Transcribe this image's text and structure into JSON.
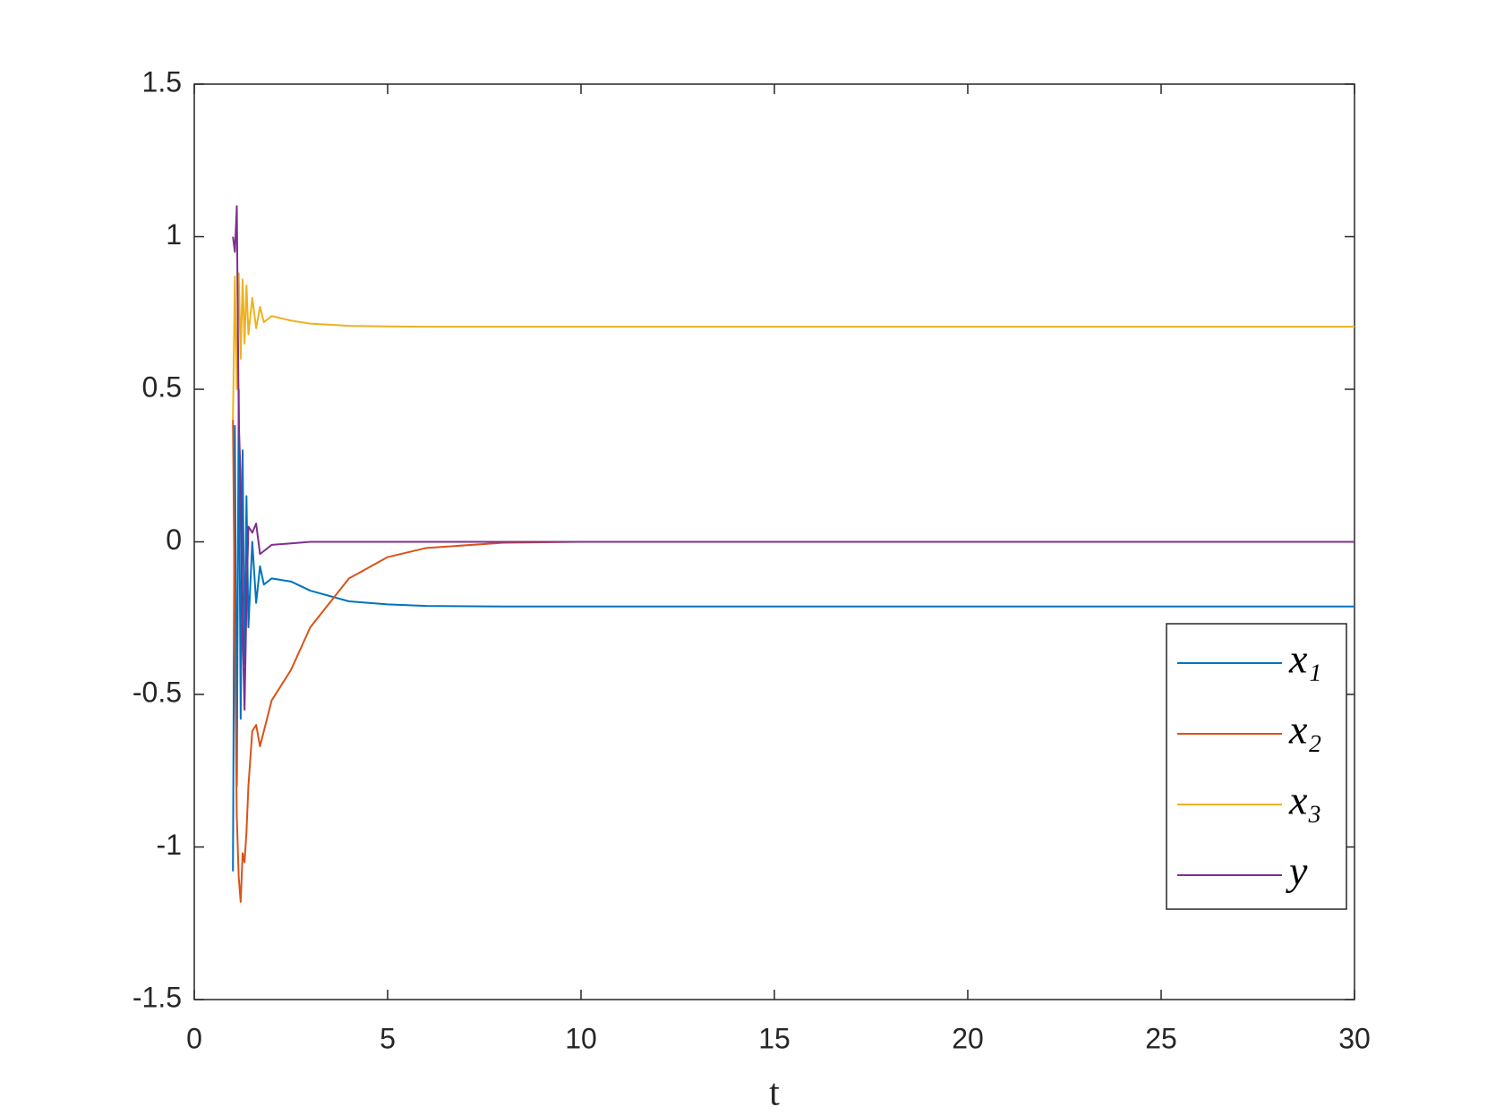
{
  "chart_data": {
    "type": "line",
    "xlabel": "t",
    "x": [
      1,
      1.05,
      1.1,
      1.15,
      1.2,
      1.25,
      1.3,
      1.35,
      1.4,
      1.5,
      1.6,
      1.7,
      1.8,
      2,
      2.5,
      3,
      4,
      5,
      6,
      8,
      10,
      15,
      20,
      30
    ],
    "series": [
      {
        "name": "x₁",
        "color": "#0072bd",
        "values": [
          -1.08,
          0.38,
          -0.8,
          0.5,
          -0.58,
          0.3,
          -0.4,
          0.15,
          -0.28,
          0.0,
          -0.2,
          -0.08,
          -0.14,
          -0.12,
          -0.13,
          -0.16,
          -0.195,
          -0.205,
          -0.21,
          -0.212,
          -0.212,
          -0.212,
          -0.212,
          -0.212
        ]
      },
      {
        "name": "x₂",
        "color": "#d95319",
        "values": [
          0.4,
          -0.3,
          -0.9,
          -1.1,
          -1.18,
          -1.02,
          -1.05,
          -0.95,
          -0.8,
          -0.62,
          -0.6,
          -0.67,
          -0.62,
          -0.52,
          -0.42,
          -0.28,
          -0.12,
          -0.05,
          -0.02,
          -0.003,
          0,
          0,
          0,
          0
        ]
      },
      {
        "name": "x₃",
        "color": "#edb120",
        "values": [
          0.4,
          0.87,
          0.5,
          0.88,
          0.6,
          0.86,
          0.65,
          0.84,
          0.68,
          0.8,
          0.7,
          0.77,
          0.72,
          0.74,
          0.725,
          0.715,
          0.708,
          0.706,
          0.705,
          0.705,
          0.705,
          0.705,
          0.705,
          0.705
        ]
      },
      {
        "name": "y",
        "color": "#7e2f8e",
        "values": [
          1.0,
          0.95,
          1.1,
          0.4,
          0.2,
          -0.3,
          -0.55,
          -0.2,
          0.05,
          0.03,
          0.06,
          -0.04,
          -0.03,
          -0.01,
          -0.005,
          0,
          0,
          0,
          0,
          0,
          0,
          0,
          0,
          0
        ]
      }
    ],
    "xlim": [
      0,
      30
    ],
    "xticks": [
      0,
      5,
      10,
      15,
      20,
      25,
      30
    ],
    "ylim": [
      -1.5,
      1.5
    ],
    "yticks": [
      -1.5,
      -1,
      -0.5,
      0,
      0.5,
      1,
      1.5
    ],
    "legend": "lower right"
  }
}
